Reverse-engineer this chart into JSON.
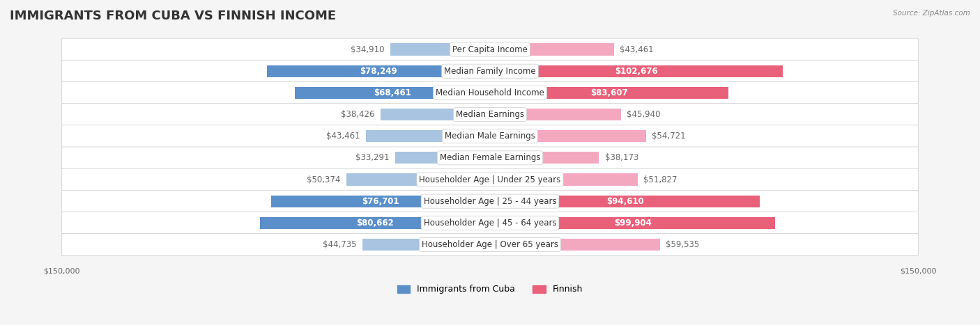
{
  "title": "IMMIGRANTS FROM CUBA VS FINNISH INCOME",
  "source": "Source: ZipAtlas.com",
  "categories": [
    "Per Capita Income",
    "Median Family Income",
    "Median Household Income",
    "Median Earnings",
    "Median Male Earnings",
    "Median Female Earnings",
    "Householder Age | Under 25 years",
    "Householder Age | 25 - 44 years",
    "Householder Age | 45 - 64 years",
    "Householder Age | Over 65 years"
  ],
  "cuba_values": [
    34910,
    78249,
    68461,
    38426,
    43461,
    33291,
    50374,
    76701,
    80662,
    44735
  ],
  "finnish_values": [
    43461,
    102676,
    83607,
    45940,
    54721,
    38173,
    51827,
    94610,
    99904,
    59535
  ],
  "cuba_labels": [
    "$34,910",
    "$78,249",
    "$68,461",
    "$38,426",
    "$43,461",
    "$33,291",
    "$50,374",
    "$76,701",
    "$80,662",
    "$44,735"
  ],
  "finnish_labels": [
    "$43,461",
    "$102,676",
    "$83,607",
    "$45,940",
    "$54,721",
    "$38,173",
    "$51,827",
    "$94,610",
    "$99,904",
    "$59,535"
  ],
  "cuba_color_light": "#a8c4e0",
  "cuba_color_dark": "#5b8fc9",
  "finnish_color_light": "#f4a8c0",
  "finnish_color_dark": "#e8607a",
  "max_value": 150000,
  "background_color": "#f5f5f5",
  "row_bg_color": "#ffffff",
  "label_color_outside": "#666666",
  "label_color_inside": "#ffffff",
  "title_fontsize": 13,
  "label_fontsize": 8.5,
  "category_fontsize": 8.5,
  "axis_label_fontsize": 8,
  "legend_fontsize": 9
}
